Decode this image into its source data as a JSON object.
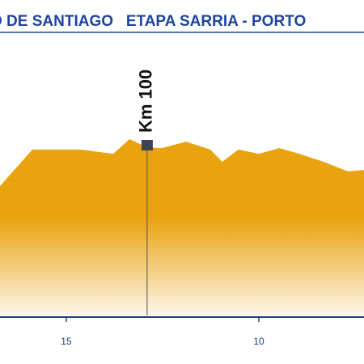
{
  "chart_data": {
    "type": "area",
    "title": "O DE SANTIAGO   ETAPA SARRIA - PORTO",
    "x": [
      16.72,
      15.88,
      14.62,
      13.78,
      13.36,
      12.9,
      12.52,
      11.89,
      11.26,
      10.95,
      10.53,
      10.0,
      9.47,
      8.95,
      8.32,
      7.69,
      7.27
    ],
    "values": [
      45.7,
      58.6,
      58.6,
      57.1,
      62.3,
      59.4,
      59.1,
      61.4,
      58.6,
      54.3,
      58.6,
      57.1,
      59.1,
      57.1,
      54.3,
      50.9,
      51.4
    ],
    "color": "#e9a30f",
    "xlim": [
      16.72,
      7.27
    ],
    "xticks": [
      15,
      10
    ],
    "ylim": [
      0,
      100
    ],
    "annotations": [
      {
        "text": "Km 100",
        "x": 12.9
      }
    ]
  }
}
